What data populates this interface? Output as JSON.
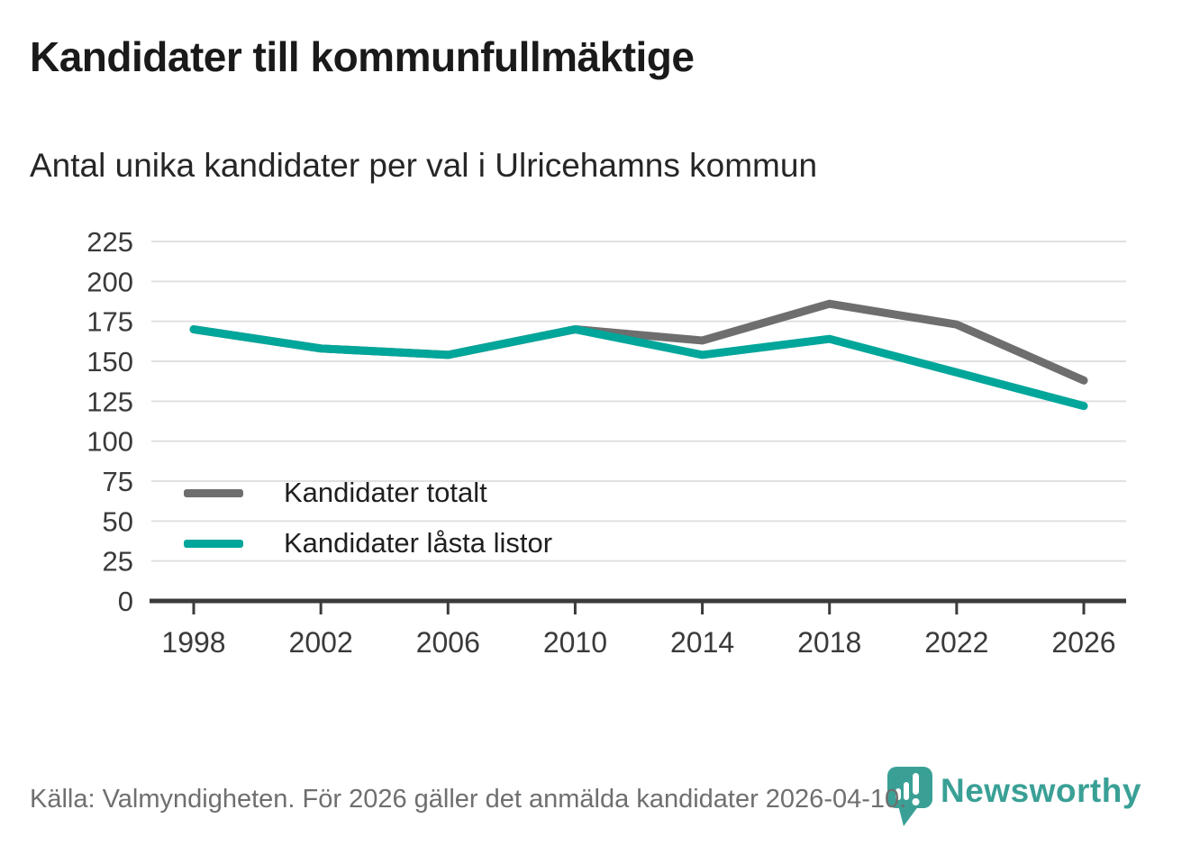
{
  "header": {
    "title": "Kandidater till kommunfullmäktige",
    "subtitle": "Antal unika kandidater per val i Ulricehamns kommun"
  },
  "chart_data": {
    "type": "line",
    "x": [
      1998,
      2002,
      2006,
      2010,
      2014,
      2018,
      2022,
      2026
    ],
    "series": [
      {
        "name": "Kandidater totalt",
        "color": "#6e6e6e",
        "values": [
          170,
          158,
          154,
          170,
          163,
          186,
          173,
          138
        ]
      },
      {
        "name": "Kandidater låsta listor",
        "color": "#00a69a",
        "values": [
          170,
          158,
          154,
          170,
          154,
          164,
          143,
          122
        ]
      }
    ],
    "ylim": [
      0,
      225
    ],
    "y_ticks": [
      0,
      25,
      50,
      75,
      100,
      125,
      150,
      175,
      200,
      225
    ],
    "grid": "horizontal",
    "legend_position": "inside-bottom-left"
  },
  "footer": {
    "source": "Källa: Valmyndigheten. För 2026 gäller det anmälda kandidater 2026-04-10.",
    "brand": "Newsworthy"
  },
  "colors": {
    "accent_teal": "#00a69a",
    "series_gray": "#6e6e6e",
    "logo_teal": "#3aa096",
    "grid_line": "#e0e0e0",
    "axis_line": "#3b3b3b",
    "tick_text": "#3a3a3a"
  }
}
